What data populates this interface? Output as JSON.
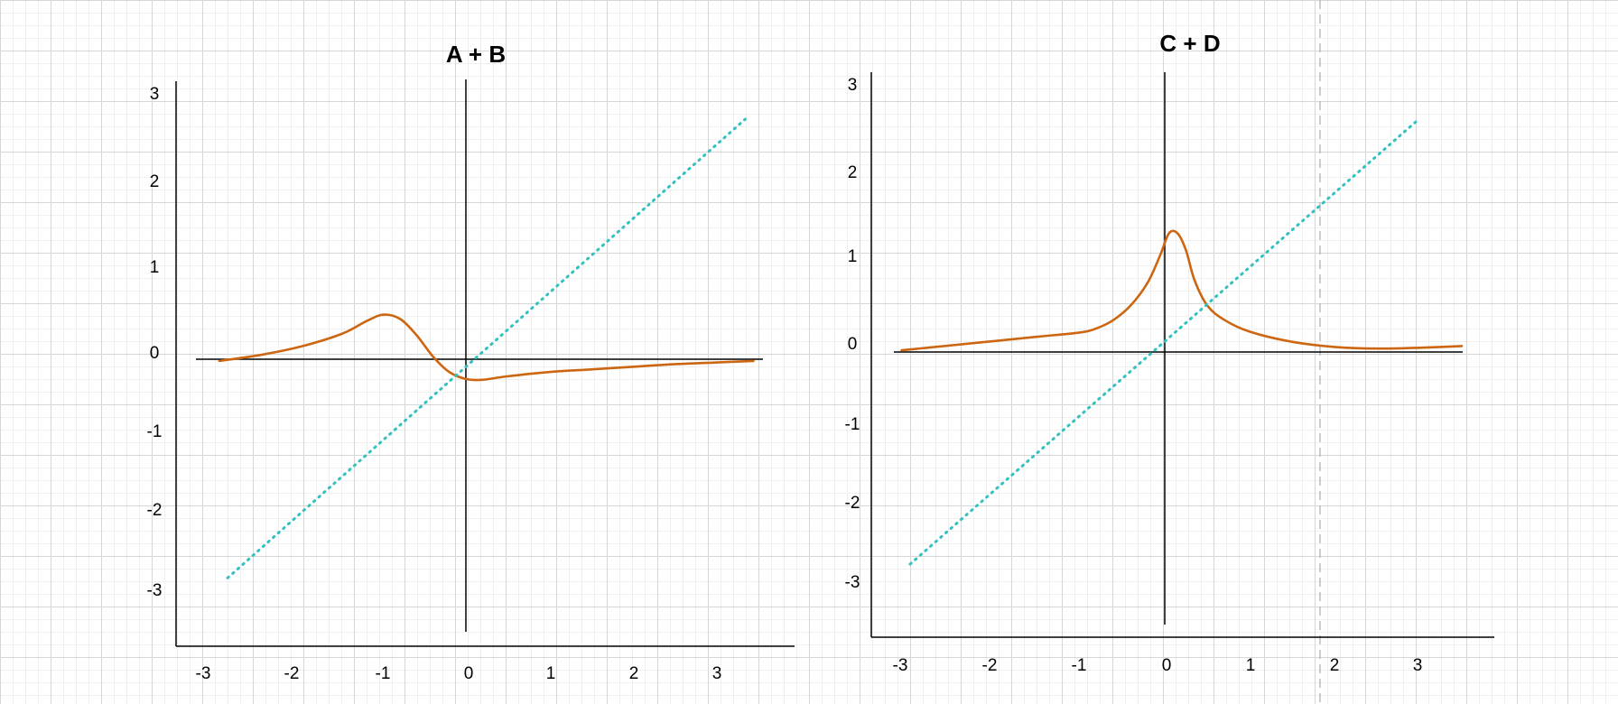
{
  "chart_data": [
    {
      "type": "line",
      "title": "A + B",
      "xlabel": "",
      "ylabel": "",
      "x_ticks": [
        "-3",
        "-2",
        "-1",
        "0",
        "1",
        "2",
        "3"
      ],
      "y_ticks": [
        "3",
        "2",
        "1",
        "0",
        "-1",
        "-2",
        "-3"
      ],
      "xlim": [
        -3.4,
        4.0
      ],
      "ylim": [
        -3.6,
        3.4
      ],
      "grid": true,
      "series": [
        {
          "style": "solid",
          "color": "#cc6611",
          "points": [
            [
              -3.0,
              -0.02
            ],
            [
              -2.5,
              0.05
            ],
            [
              -2.0,
              0.15
            ],
            [
              -1.5,
              0.3
            ],
            [
              -1.2,
              0.45
            ],
            [
              -1.0,
              0.52
            ],
            [
              -0.8,
              0.47
            ],
            [
              -0.6,
              0.28
            ],
            [
              -0.4,
              0.03
            ],
            [
              -0.2,
              -0.15
            ],
            [
              0.0,
              -0.23
            ],
            [
              0.2,
              -0.24
            ],
            [
              0.5,
              -0.2
            ],
            [
              1.0,
              -0.15
            ],
            [
              1.5,
              -0.12
            ],
            [
              2.0,
              -0.09
            ],
            [
              2.5,
              -0.06
            ],
            [
              3.0,
              -0.04
            ],
            [
              3.5,
              -0.02
            ]
          ]
        },
        {
          "style": "dotted",
          "color": "#33c0c0",
          "points": [
            [
              -2.9,
              -2.55
            ],
            [
              3.4,
              2.8
            ]
          ]
        }
      ]
    },
    {
      "type": "line",
      "title": "C + D",
      "xlabel": "",
      "ylabel": "",
      "x_ticks": [
        "-3",
        "-2",
        "-1",
        "0",
        "1",
        "2",
        "3"
      ],
      "y_ticks": [
        "3",
        "2",
        "1",
        "0",
        "-1",
        "-2",
        "-3"
      ],
      "xlim": [
        -3.5,
        4.0
      ],
      "ylim": [
        -3.6,
        3.3
      ],
      "grid": true,
      "series": [
        {
          "style": "solid",
          "color": "#cc6611",
          "points": [
            [
              -3.1,
              0.02
            ],
            [
              -2.5,
              0.08
            ],
            [
              -2.0,
              0.13
            ],
            [
              -1.5,
              0.18
            ],
            [
              -1.0,
              0.23
            ],
            [
              -0.8,
              0.28
            ],
            [
              -0.6,
              0.38
            ],
            [
              -0.4,
              0.55
            ],
            [
              -0.2,
              0.82
            ],
            [
              -0.05,
              1.15
            ],
            [
              0.05,
              1.4
            ],
            [
              0.15,
              1.4
            ],
            [
              0.25,
              1.2
            ],
            [
              0.35,
              0.85
            ],
            [
              0.5,
              0.55
            ],
            [
              0.7,
              0.38
            ],
            [
              1.0,
              0.24
            ],
            [
              1.5,
              0.12
            ],
            [
              2.0,
              0.06
            ],
            [
              2.5,
              0.04
            ],
            [
              3.0,
              0.05
            ],
            [
              3.5,
              0.07
            ]
          ]
        },
        {
          "style": "dotted",
          "color": "#33c0c0",
          "points": [
            [
              -3.0,
              -2.5
            ],
            [
              3.0,
              2.75
            ]
          ]
        }
      ]
    }
  ]
}
